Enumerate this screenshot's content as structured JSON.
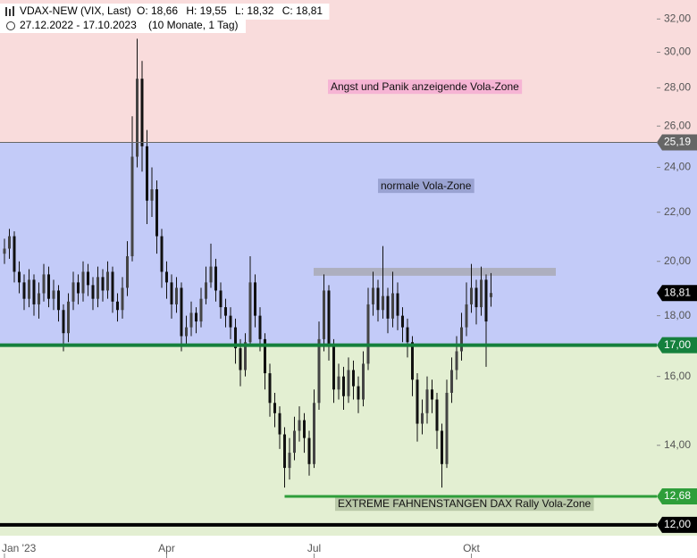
{
  "chart_data": {
    "type": "candlestick",
    "title": "VDAX-NEW (VIX, Last)",
    "header_values": [
      "O: 18,66",
      "H: 19,55",
      "L: 18,32",
      "C: 18,81"
    ],
    "subtitle": "27.12.2022 - 17.10.2023",
    "period": "(10 Monate, 1 Tag)",
    "log_scale": true,
    "ylim": [
      11.75,
      33.2
    ],
    "yticks": [
      {
        "value": 12,
        "label": "12,00"
      },
      {
        "value": 14,
        "label": "14,00"
      },
      {
        "value": 16,
        "label": "16,00"
      },
      {
        "value": 18,
        "label": "18,00"
      },
      {
        "value": 20,
        "label": "20,00"
      },
      {
        "value": 22,
        "label": "22,00"
      },
      {
        "value": 24,
        "label": "24,00"
      },
      {
        "value": 26,
        "label": "26,00"
      },
      {
        "value": 28,
        "label": "28,00"
      },
      {
        "value": 30,
        "label": "30,00"
      },
      {
        "value": 32,
        "label": "32,00"
      }
    ],
    "categories": [
      "Jan '23",
      null,
      null,
      null,
      null,
      null,
      null,
      null,
      null,
      null,
      null,
      null,
      null,
      null,
      null,
      null,
      null,
      null,
      null,
      null,
      null,
      null,
      null,
      null,
      null,
      null,
      null,
      null,
      null,
      null,
      null,
      null,
      null,
      "Apr",
      null,
      null,
      null,
      null,
      null,
      null,
      null,
      null,
      null,
      null,
      null,
      null,
      null,
      null,
      null,
      null,
      null,
      null,
      null,
      null,
      null,
      null,
      null,
      null,
      null,
      null,
      null,
      null,
      null,
      "Jul",
      null,
      null,
      null,
      null,
      null,
      null,
      null,
      null,
      null,
      null,
      null,
      null,
      null,
      null,
      null,
      null,
      null,
      null,
      null,
      null,
      null,
      null,
      null,
      null,
      null,
      null,
      null,
      null,
      null,
      null,
      null,
      "Okt",
      null,
      null,
      null,
      null
    ],
    "color": "#111111",
    "open": [
      20.3,
      20.5,
      21.0,
      19.6,
      19.2,
      18.6,
      19.3,
      18.4,
      18.8,
      19.5,
      18.6,
      18.9,
      18.2,
      17.4,
      18.5,
      19.2,
      18.8,
      19.6,
      19.1,
      18.6,
      19.4,
      18.9,
      19.6,
      18.5,
      18.2,
      19.0,
      20.2,
      24.5,
      28.5,
      25.0,
      22.5,
      23.0,
      21.0,
      19.6,
      19.2,
      18.4,
      19.0,
      17.3,
      17.6,
      18.1,
      17.8,
      18.6,
      19.2,
      19.8,
      18.9,
      18.3,
      18.0,
      17.6,
      16.9,
      16.2,
      17.1,
      19.2,
      18.0,
      17.2,
      16.1,
      15.2,
      14.9,
      14.3,
      13.4,
      13.8,
      14.4,
      14.7,
      14.2,
      13.5,
      15.2,
      17.2,
      18.9,
      17.0,
      15.6,
      16.0,
      15.4,
      16.2,
      15.7,
      15.3,
      16.4,
      18.4,
      19.0,
      18.2,
      18.7,
      17.9,
      18.8,
      18.0,
      17.6,
      17.1,
      15.9,
      14.6,
      14.9,
      15.6,
      15.3,
      14.4,
      13.5,
      15.5,
      16.2,
      16.8,
      17.6,
      18.4,
      19.0,
      18.3,
      19.3,
      18.66
    ],
    "high": [
      20.9,
      21.3,
      21.2,
      20.0,
      19.5,
      19.7,
      19.5,
      19.2,
      19.9,
      19.8,
      19.3,
      19.1,
      18.4,
      18.8,
      19.6,
      19.5,
      20.0,
      19.9,
      19.4,
      19.8,
      19.7,
      20.0,
      19.8,
      18.8,
      19.4,
      20.8,
      26.5,
      30.8,
      29.5,
      25.8,
      24.0,
      23.4,
      21.3,
      20.0,
      19.5,
      19.4,
      19.2,
      18.0,
      18.5,
      18.3,
      19.0,
      19.8,
      20.7,
      20.1,
      19.2,
      18.6,
      18.3,
      17.9,
      17.2,
      17.4,
      20.2,
      19.5,
      18.3,
      17.4,
      16.4,
      15.5,
      15.1,
      14.5,
      14.2,
      14.8,
      15.1,
      14.9,
      14.4,
      15.6,
      17.8,
      19.5,
      19.1,
      17.2,
      16.4,
      16.3,
      16.6,
      16.5,
      16.0,
      16.8,
      19.0,
      19.6,
      19.3,
      20.6,
      19.0,
      19.6,
      19.2,
      18.3,
      17.9,
      17.3,
      16.1,
      15.3,
      16.0,
      15.9,
      15.5,
      14.6,
      15.9,
      16.6,
      17.3,
      18.1,
      19.2,
      19.9,
      19.3,
      19.8,
      19.5,
      19.55
    ],
    "low": [
      19.9,
      20.1,
      19.2,
      18.8,
      18.2,
      18.3,
      18.0,
      17.9,
      18.5,
      18.3,
      18.2,
      17.8,
      16.8,
      17.1,
      18.2,
      18.4,
      18.5,
      18.7,
      18.2,
      18.3,
      18.5,
      18.6,
      18.1,
      17.8,
      17.9,
      18.7,
      20.0,
      24.0,
      23.8,
      21.5,
      21.8,
      20.3,
      19.0,
      18.6,
      17.9,
      18.1,
      16.8,
      17.0,
      17.3,
      17.4,
      17.6,
      18.4,
      19.0,
      18.5,
      17.9,
      17.6,
      17.2,
      16.4,
      15.7,
      16.0,
      17.0,
      17.6,
      16.8,
      15.6,
      14.8,
      14.5,
      13.9,
      12.9,
      13.1,
      13.6,
      14.1,
      13.8,
      13.2,
      13.4,
      15.0,
      16.8,
      16.5,
      15.2,
      15.3,
      15.0,
      15.2,
      15.3,
      14.9,
      15.1,
      16.2,
      18.0,
      17.8,
      17.9,
      17.4,
      17.6,
      17.5,
      17.1,
      16.6,
      15.4,
      14.1,
      14.3,
      14.6,
      14.9,
      13.9,
      12.9,
      13.4,
      15.2,
      15.9,
      16.5,
      17.3,
      18.1,
      17.7,
      18.0,
      16.3,
      18.32
    ],
    "close": [
      20.5,
      21.0,
      19.6,
      19.2,
      18.6,
      19.3,
      18.4,
      18.8,
      19.5,
      18.6,
      18.9,
      18.2,
      17.4,
      18.5,
      19.2,
      18.8,
      19.6,
      19.1,
      18.6,
      19.4,
      18.9,
      19.6,
      18.5,
      18.2,
      19.0,
      20.2,
      24.5,
      28.5,
      25.0,
      22.5,
      23.0,
      21.0,
      19.6,
      19.2,
      18.4,
      19.0,
      17.3,
      17.6,
      18.1,
      17.8,
      18.6,
      19.2,
      19.8,
      18.9,
      18.3,
      18.0,
      17.6,
      16.9,
      16.2,
      17.1,
      19.2,
      18.0,
      17.2,
      16.1,
      15.2,
      14.9,
      14.3,
      13.4,
      13.8,
      14.4,
      14.7,
      14.2,
      13.5,
      15.2,
      17.2,
      18.9,
      17.0,
      15.6,
      16.0,
      15.4,
      16.2,
      15.7,
      15.3,
      16.4,
      18.4,
      19.0,
      18.2,
      18.7,
      17.9,
      18.8,
      18.0,
      17.6,
      17.1,
      15.9,
      14.6,
      14.9,
      15.6,
      15.3,
      14.4,
      13.5,
      15.5,
      16.2,
      16.8,
      17.6,
      18.4,
      19.0,
      18.3,
      19.3,
      17.8,
      18.81
    ],
    "levels": [
      {
        "value": 25.19,
        "label": "25,19",
        "color": "#666666",
        "line_width": 1
      },
      {
        "value": 18.81,
        "label": "18,81",
        "color": "#000000",
        "line_width": 0
      },
      {
        "value": 17,
        "label": "17,00",
        "color": "#15803d",
        "line_width": 4
      },
      {
        "value": 12.68,
        "label": "12,68",
        "color": "#2e9e3a",
        "line_width": 3
      },
      {
        "value": 12,
        "label": "12,00",
        "color": "#000000",
        "line_width": 4
      }
    ],
    "zones": [
      {
        "label": "Angst und Panik anzeigende Vola-Zone",
        "color": "#f9dcdc",
        "label_bg": "#f6b4d4"
      },
      {
        "label": "normale Vola-Zone",
        "color": "#c3cbf8",
        "label_bg": "#9aa3d2"
      },
      {
        "label": "EXTREME FAHNENSTANGEN DAX Rally Vola-Zone",
        "color": "#e3efd2",
        "label_bg": "#b9c8a8"
      }
    ],
    "band": {
      "low": 19.45,
      "high": 19.75,
      "color": "#a8a8b0"
    }
  }
}
